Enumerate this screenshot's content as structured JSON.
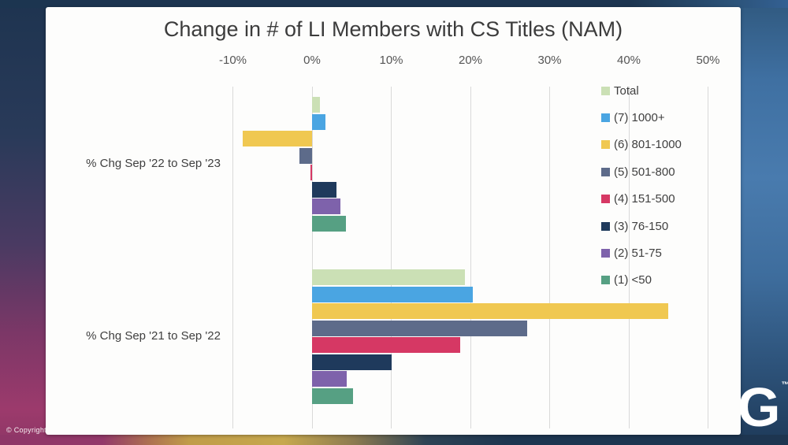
{
  "page": {
    "copyright": "© Copyright",
    "logo": "G",
    "logo_trademark": "™"
  },
  "chart_data": {
    "type": "bar",
    "orientation": "horizontal",
    "title": "Change in # of LI Members with CS Titles (NAM)",
    "categories": [
      "% Chg Sep '22 to Sep '23",
      "% Chg Sep '21 to Sep '22"
    ],
    "x_tick_labels": [
      "-10%",
      "0%",
      "10%",
      "20%",
      "30%",
      "40%",
      "50%"
    ],
    "x_tick_values": [
      -10,
      0,
      10,
      20,
      30,
      40,
      50
    ],
    "xlim": [
      -10,
      50
    ],
    "unit": "%",
    "grid": true,
    "legend_position": "top-right",
    "series": [
      {
        "name": "Total",
        "color": "#cbe0b5",
        "values": [
          1.0,
          19.3
        ]
      },
      {
        "name": "(7) 1000+",
        "color": "#4aa5e2",
        "values": [
          1.7,
          20.3
        ]
      },
      {
        "name": "(6) 801-1000",
        "color": "#f0c851",
        "values": [
          -8.8,
          45.0
        ]
      },
      {
        "name": "(5) 501-800",
        "color": "#5d6b8a",
        "values": [
          -1.6,
          27.2
        ]
      },
      {
        "name": "(4) 151-500",
        "color": "#d63864",
        "values": [
          -0.2,
          18.7
        ]
      },
      {
        "name": "(3) 76-150",
        "color": "#1f3a5c",
        "values": [
          3.1,
          10.0
        ]
      },
      {
        "name": "(2) 51-75",
        "color": "#7e62ab",
        "values": [
          3.6,
          4.4
        ]
      },
      {
        "name": "(1) <50",
        "color": "#56a083",
        "values": [
          4.3,
          5.2
        ]
      }
    ]
  }
}
